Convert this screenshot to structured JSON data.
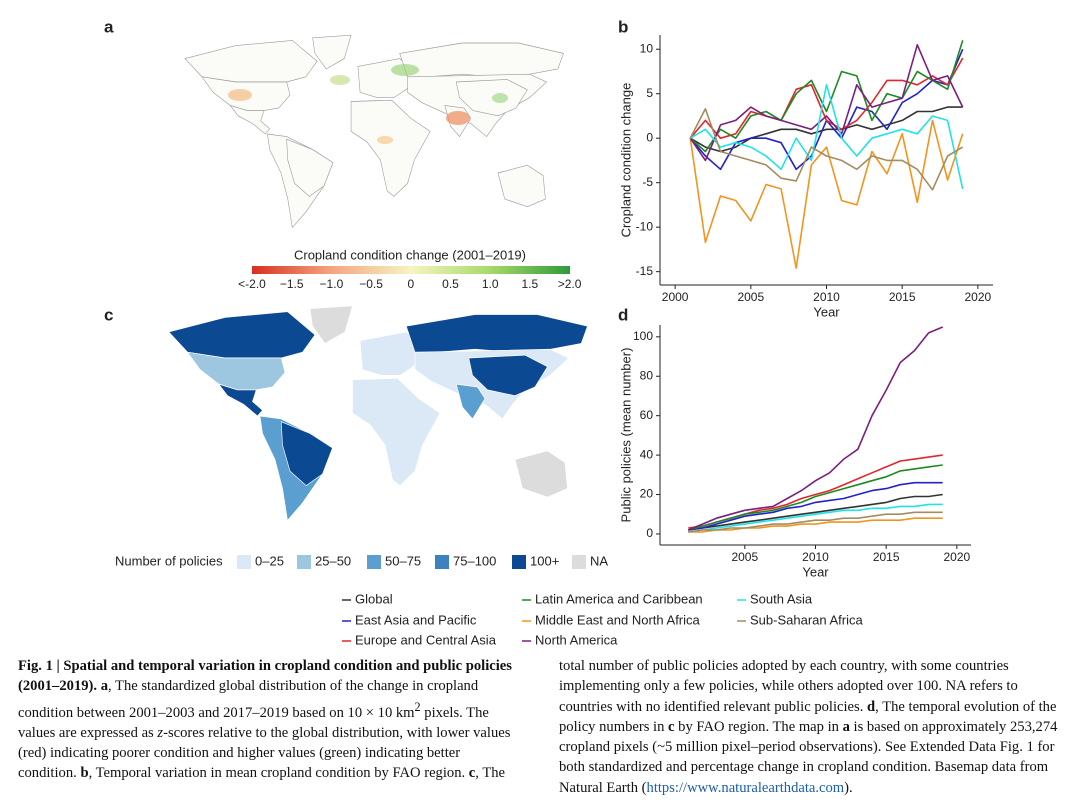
{
  "panel_labels": [
    "a",
    "b",
    "c",
    "d"
  ],
  "map_a": {
    "colorbar_title": "Cropland condition change (2001–2019)",
    "colorbar_labels": [
      "<-2.0",
      "−1.5",
      "−1.0",
      "−0.5",
      "0",
      "0.5",
      "1.0",
      "1.5",
      ">2.0"
    ]
  },
  "map_c": {
    "legend_title": "Number of policies",
    "legend": [
      {
        "label": "0–25",
        "color": "#dbe9f6"
      },
      {
        "label": "25–50",
        "color": "#9dc6e0"
      },
      {
        "label": "50–75",
        "color": "#5a9fcf"
      },
      {
        "label": "75–100",
        "color": "#3b82bf"
      },
      {
        "label": "100+",
        "color": "#0b4a93"
      },
      {
        "label": "NA",
        "color": "#dcdcdc"
      }
    ]
  },
  "chart_data": [
    {
      "type": "line",
      "y_label": "Cropland condition change",
      "x_label": "Year",
      "x": [
        2001,
        2002,
        2003,
        2004,
        2005,
        2006,
        2007,
        2008,
        2009,
        2010,
        2011,
        2012,
        2013,
        2014,
        2015,
        2016,
        2017,
        2018,
        2019
      ],
      "xlim": [
        1999,
        2021
      ],
      "xticks": [
        2000,
        2005,
        2010,
        2015,
        2020
      ],
      "ylim": [
        -16.5,
        11.6
      ],
      "yticks": [
        -15,
        -10,
        -5,
        0,
        5,
        10
      ],
      "series": [
        {
          "name": "Global",
          "color": "#333333",
          "values": [
            0,
            -1,
            -1.5,
            -1,
            0,
            0.5,
            1,
            1,
            0.5,
            1,
            1,
            1.5,
            1,
            1.5,
            2,
            3,
            3,
            3.5,
            3.5
          ]
        },
        {
          "name": "East Asia and Pacific",
          "color": "#2222c8",
          "values": [
            0,
            -2,
            -3.5,
            -0.5,
            0,
            0,
            -0.5,
            -3.5,
            -2,
            2,
            0,
            3.5,
            3,
            1,
            4,
            5,
            6.5,
            6,
            10
          ]
        },
        {
          "name": "Europe and Central Asia",
          "color": "#e3262b",
          "values": [
            0,
            2,
            0,
            0.5,
            3,
            2.5,
            2,
            5.5,
            6,
            2,
            1,
            2,
            4,
            6.5,
            6.5,
            6,
            7,
            6,
            9
          ]
        },
        {
          "name": "Latin America and Caribbean",
          "color": "#1e8a22",
          "values": [
            0,
            -1.5,
            1,
            0,
            2.5,
            3,
            2,
            5,
            6.5,
            3,
            7.5,
            7,
            2,
            5,
            4.5,
            7.5,
            6.5,
            5.5,
            11
          ]
        },
        {
          "name": "Middle East and North Africa",
          "color": "#f29420",
          "values": [
            0,
            -11.7,
            -6.5,
            -7,
            -9.3,
            -5.2,
            -5.7,
            -14.6,
            -3,
            -1,
            -7,
            -7.5,
            -1.5,
            -4,
            0.5,
            -7.2,
            2,
            -4.7,
            0.5
          ]
        },
        {
          "name": "North America",
          "color": "#7b1f7e",
          "values": [
            0,
            -2.5,
            1.5,
            2,
            3.5,
            2.5,
            2,
            1.5,
            1,
            2.5,
            0.5,
            6,
            3.5,
            4,
            4.5,
            10.5,
            6.5,
            7,
            3.5
          ]
        },
        {
          "name": "South Asia",
          "color": "#22e2e6",
          "values": [
            0,
            1,
            -1,
            -0.5,
            -1,
            -2,
            -3.5,
            0,
            -2.5,
            6,
            0,
            -2,
            0,
            0.5,
            1,
            0.5,
            2.5,
            2,
            -5.7
          ]
        },
        {
          "name": "Sub-Saharan Africa",
          "color": "#a38c5f",
          "values": [
            0,
            3.3,
            -1.5,
            -2,
            -2.5,
            -3,
            -4.5,
            -4.8,
            -1,
            -2,
            -2.5,
            -3.5,
            -2,
            -2.5,
            -2.5,
            -3.5,
            -5.8,
            -2,
            -1
          ]
        }
      ]
    },
    {
      "type": "line",
      "y_label": "Public policies (mean number)",
      "x_label": "Year",
      "x": [
        2001,
        2002,
        2003,
        2004,
        2005,
        2006,
        2007,
        2008,
        2009,
        2010,
        2011,
        2012,
        2013,
        2014,
        2015,
        2016,
        2017,
        2018,
        2019
      ],
      "xlim": [
        1999,
        2021
      ],
      "xticks": [
        2005,
        2010,
        2015,
        2020
      ],
      "ylim": [
        -5.6,
        106
      ],
      "yticks": [
        0,
        20,
        40,
        60,
        80,
        100
      ],
      "series": [
        {
          "color": "#333333",
          "values": [
            2,
            3,
            4,
            5,
            6,
            7,
            8,
            9,
            10,
            11,
            12,
            13,
            14,
            15,
            16,
            18,
            19,
            19,
            20
          ]
        },
        {
          "color": "#2222c8",
          "values": [
            2,
            3,
            5,
            7,
            9,
            10,
            11,
            13,
            14,
            16,
            17,
            18,
            20,
            22,
            23,
            25,
            26,
            26,
            26
          ]
        },
        {
          "color": "#e3262b",
          "values": [
            3,
            4,
            6,
            8,
            10,
            12,
            13,
            15,
            18,
            20,
            22,
            25,
            28,
            31,
            34,
            37,
            38,
            39,
            40
          ]
        },
        {
          "color": "#1e8a22",
          "values": [
            2,
            4,
            6,
            8,
            10,
            11,
            12,
            14,
            16,
            19,
            21,
            23,
            25,
            27,
            29,
            32,
            33,
            34,
            35
          ]
        },
        {
          "color": "#f29420",
          "values": [
            1,
            1,
            2,
            2,
            3,
            3,
            4,
            4,
            5,
            5,
            6,
            6,
            6,
            7,
            7,
            7,
            8,
            8,
            8
          ]
        },
        {
          "color": "#7b1f7e",
          "values": [
            2,
            5,
            8,
            10,
            12,
            13,
            14,
            18,
            22,
            27,
            31,
            38,
            43,
            60,
            73,
            87,
            93,
            102,
            105
          ]
        },
        {
          "color": "#22e2e6",
          "values": [
            1,
            2,
            3,
            4,
            5,
            6,
            7,
            8,
            9,
            10,
            11,
            12,
            12,
            13,
            13,
            14,
            14,
            15,
            15
          ]
        },
        {
          "color": "#a38c5f",
          "values": [
            1,
            2,
            2,
            3,
            3,
            4,
            5,
            5,
            6,
            7,
            7,
            8,
            8,
            9,
            10,
            10,
            11,
            11,
            11
          ]
        }
      ]
    }
  ],
  "caption": [
    "Fig. 1 | Spatial and temporal variation in cropland condition and public policies (2001–2019).",
    "a",
    ", The standardized global distribution of the change in cropland condition between 2001–2003 and 2017–2019 based on 10 × 10 km",
    "2",
    " pixels. The values are expressed as ",
    "z",
    "-scores relative to the global distribution, with lower values (red) indicating poorer condition and higher values (green) indicating better condition.",
    "b",
    ", Temporal variation in mean cropland condition by FAO region.",
    "c",
    ", The total number of public policies adopted by each country, with some countries implementing only a few policies, while others adopted over 100. NA refers to countries with no identified relevant public policies.",
    "d",
    ", The temporal evolution of the policy numbers in ",
    "c",
    " by FAO region. The map in ",
    "a",
    " is based on approximately 253,274 cropland pixels (~5 million pixel–period observations). See Extended Data Fig. 1 for both standardized and percentage change in cropland condition. Basemap data from Natural Earth (",
    "https://www.naturalearthdata.com",
    ")."
  ]
}
